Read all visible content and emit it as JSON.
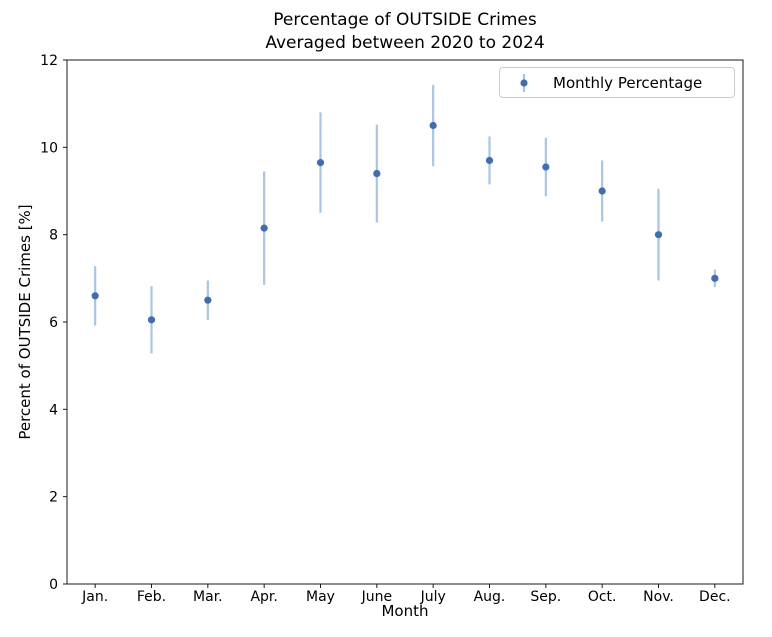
{
  "chart_data": {
    "type": "scatter",
    "subtype": "errorbar",
    "title_lines": [
      "Percentage of OUTSIDE Crimes",
      "Averaged between 2020 to 2024"
    ],
    "xlabel": "Month",
    "ylabel": "Percent of OUTSIDE Crimes [%]",
    "categories": [
      "Jan.",
      "Feb.",
      "Mar.",
      "Apr.",
      "May",
      "June",
      "July",
      "Aug.",
      "Sep.",
      "Oct.",
      "Nov.",
      "Dec."
    ],
    "values": [
      6.6,
      6.05,
      6.5,
      8.15,
      9.65,
      9.4,
      10.5,
      9.7,
      9.55,
      9.0,
      8.0,
      7.0
    ],
    "errors": [
      0.68,
      0.77,
      0.45,
      1.3,
      1.15,
      1.12,
      0.93,
      0.55,
      0.67,
      0.7,
      1.05,
      0.2
    ],
    "ylim": [
      0,
      12
    ],
    "yticks": [
      0,
      2,
      4,
      6,
      8,
      10,
      12
    ],
    "grid": false,
    "legend": {
      "position": "upper right",
      "entries": [
        "Monthly Percentage"
      ]
    },
    "colors": {
      "marker": "#3d6db5",
      "error_bar": "#a9c5e5",
      "axis": "#1a1a1a",
      "text": "#000000",
      "legend_border": "#cccccc"
    }
  }
}
